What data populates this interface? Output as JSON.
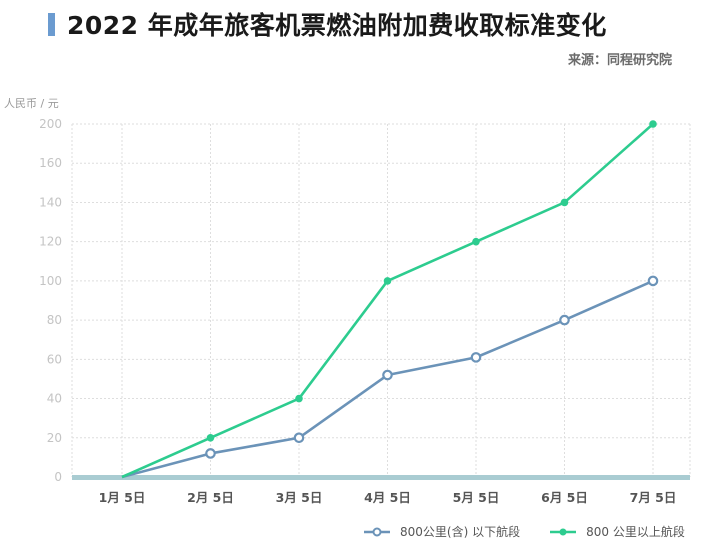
{
  "header": {
    "title": "2022 年成年旅客机票燃油附加费收取标准变化",
    "source": "来源：同程研究院",
    "accent_color": "#6b9bd0"
  },
  "axis": {
    "unit_label": "人民币 / 元"
  },
  "legend": {
    "items": [
      {
        "label": "800公里(含) 以下航段",
        "color": "#6b93b8",
        "marker": "hollow-circle"
      },
      {
        "label": "800 公里以上航段",
        "color": "#2dcc8f",
        "marker": "filled-circle"
      }
    ]
  },
  "chart_data": {
    "type": "line",
    "title": "2022 年成年旅客机票燃油附加费收取标准变化",
    "subtitle": "来源：同程研究院",
    "xlabel": "",
    "ylabel": "人民币 / 元",
    "categories": [
      "1月 5日",
      "2月 5日",
      "3月 5日",
      "4月 5日",
      "5月 5日",
      "6月 5日",
      "7月 5日"
    ],
    "y_tick_labels": [
      "0",
      "20",
      "40",
      "60",
      "80",
      "100",
      "120",
      "140",
      "160",
      "200"
    ],
    "ylim": [
      0,
      200
    ],
    "grid": true,
    "legend_position": "bottom-right",
    "series": [
      {
        "name": "800公里(含) 以下航段",
        "color": "#6b93b8",
        "values": [
          0,
          12,
          20,
          52,
          61,
          80,
          100
        ]
      },
      {
        "name": "800 公里以上航段",
        "color": "#2dcc8f",
        "values": [
          0,
          20,
          40,
          100,
          120,
          140,
          200
        ]
      }
    ]
  }
}
